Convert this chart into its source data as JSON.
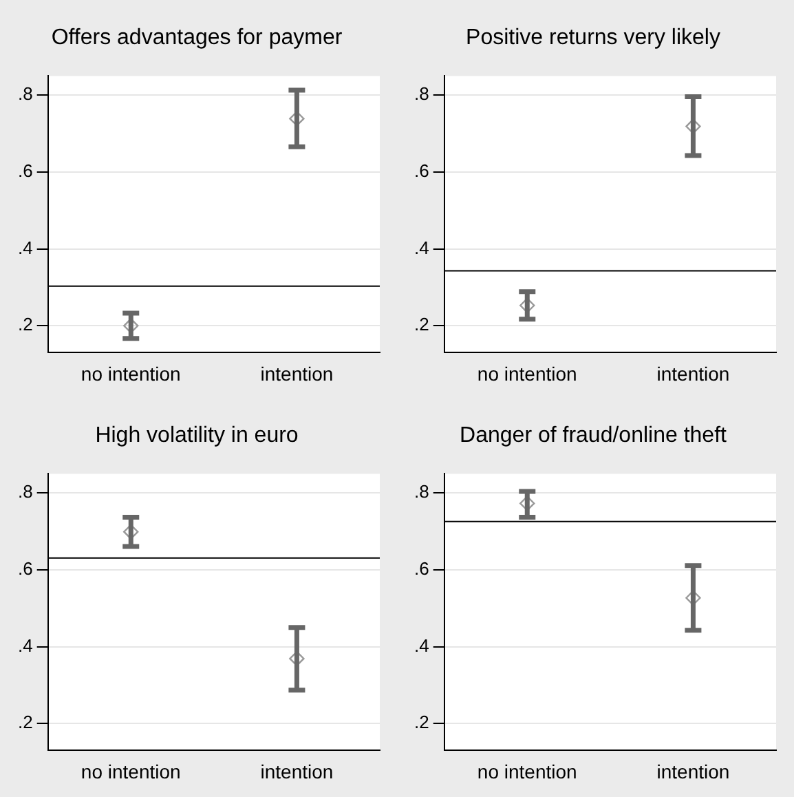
{
  "chart_data": [
    {
      "type": "scatter",
      "title": "Offers advantages for paymer",
      "categories": [
        "no intention",
        "intention"
      ],
      "series": [
        {
          "color": "#999999",
          "values": [
            0.2,
            0.739
          ],
          "errors": [
            [
              0.167,
              0.233
            ],
            [
              0.666,
              0.813
            ]
          ]
        }
      ],
      "ylim": [
        0.13,
        0.85
      ],
      "yticks": [
        {
          "value": 0.2,
          "label": ".2"
        },
        {
          "value": 0.4,
          "label": ".4"
        },
        {
          "value": 0.6,
          "label": ".6"
        },
        {
          "value": 0.8,
          "label": ".8"
        }
      ],
      "ref_lines": [
        {
          "axis": "y",
          "value": 0.303,
          "color": "#000000"
        }
      ],
      "grid": "y",
      "marker": "diamond",
      "legend": false
    },
    {
      "type": "scatter",
      "title": "Positive returns very likely",
      "categories": [
        "no intention",
        "intention"
      ],
      "series": [
        {
          "color": "#999999",
          "values": [
            0.253,
            0.719
          ],
          "errors": [
            [
              0.217,
              0.289
            ],
            [
              0.643,
              0.796
            ]
          ]
        }
      ],
      "ylim": [
        0.13,
        0.85
      ],
      "yticks": [
        {
          "value": 0.2,
          "label": ".2"
        },
        {
          "value": 0.4,
          "label": ".4"
        },
        {
          "value": 0.6,
          "label": ".6"
        },
        {
          "value": 0.8,
          "label": ".8"
        }
      ],
      "ref_lines": [
        {
          "axis": "y",
          "value": 0.343,
          "color": "#000000"
        }
      ],
      "grid": "y",
      "marker": "diamond",
      "legend": false
    },
    {
      "type": "scatter",
      "title": "High volatility in euro",
      "categories": [
        "no intention",
        "intention"
      ],
      "series": [
        {
          "color": "#999999",
          "values": [
            0.699,
            0.369
          ],
          "errors": [
            [
              0.661,
              0.737
            ],
            [
              0.287,
              0.45
            ]
          ]
        }
      ],
      "ylim": [
        0.13,
        0.85
      ],
      "yticks": [
        {
          "value": 0.2,
          "label": ".2"
        },
        {
          "value": 0.4,
          "label": ".4"
        },
        {
          "value": 0.6,
          "label": ".6"
        },
        {
          "value": 0.8,
          "label": ".8"
        }
      ],
      "ref_lines": [
        {
          "axis": "y",
          "value": 0.631,
          "color": "#000000"
        }
      ],
      "grid": "y",
      "marker": "diamond",
      "legend": false
    },
    {
      "type": "scatter",
      "title": "Danger of fraud/online theft",
      "categories": [
        "no intention",
        "intention"
      ],
      "series": [
        {
          "color": "#999999",
          "values": [
            0.773,
            0.527
          ],
          "errors": [
            [
              0.737,
              0.804
            ],
            [
              0.443,
              0.611
            ]
          ]
        }
      ],
      "ylim": [
        0.13,
        0.85
      ],
      "yticks": [
        {
          "value": 0.2,
          "label": ".2"
        },
        {
          "value": 0.4,
          "label": ".4"
        },
        {
          "value": 0.6,
          "label": ".6"
        },
        {
          "value": 0.8,
          "label": ".8"
        }
      ],
      "ref_lines": [
        {
          "axis": "y",
          "value": 0.726,
          "color": "#000000"
        }
      ],
      "grid": "y",
      "marker": "diamond",
      "legend": false
    }
  ]
}
